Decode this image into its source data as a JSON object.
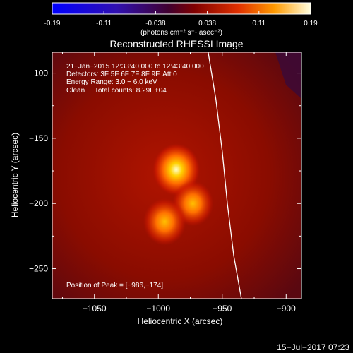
{
  "colorbar": {
    "ticks": [
      "-0.19",
      "-0.11",
      "-0.038",
      "0.038",
      "0.11",
      "0.19"
    ],
    "units": "(photons cm⁻² s⁻¹ asec⁻²)",
    "min": -0.19,
    "max": 0.19
  },
  "chart_data": {
    "type": "heatmap",
    "title": "Reconstructed RHESSI Image",
    "xlabel": "Heliocentric X (arcsec)",
    "ylabel": "Heliocentric Y (arcsec)",
    "xlim": [
      -1083,
      -888
    ],
    "ylim": [
      -273,
      -84
    ],
    "xticks": [
      "−1050",
      "−1000",
      "−950",
      "−900"
    ],
    "xtick_values": [
      -1050,
      -1000,
      -950,
      -900
    ],
    "yticks": [
      "−100",
      "−150",
      "−200",
      "−250"
    ],
    "ytick_values": [
      -100,
      -150,
      -200,
      -250
    ],
    "sources": [
      {
        "x": -986,
        "y": -174,
        "peak": 0.19
      },
      {
        "x": -973,
        "y": -200,
        "peak": 0.12
      },
      {
        "x": -995,
        "y": -214,
        "peak": 0.14
      }
    ],
    "limb_points": [
      [
        -961,
        -84
      ],
      [
        -955,
        -120
      ],
      [
        -950,
        -160
      ],
      [
        -946,
        -200
      ],
      [
        -941,
        -240
      ],
      [
        -935,
        -273
      ]
    ],
    "info_lines": [
      "21−Jan−2015 12:33:40.000 to 12:43:40.000",
      "Detectors: 3F 5F 6F 7F 8F 9F, Att 0",
      "Energy Range: 3.0 − 6.0 keV",
      "Clean     Total counts: 8.29E+04"
    ],
    "peak_label": "Position of Peak = [−986,−174]"
  },
  "footer": {
    "date": "15−Jul−2017 07:23"
  }
}
